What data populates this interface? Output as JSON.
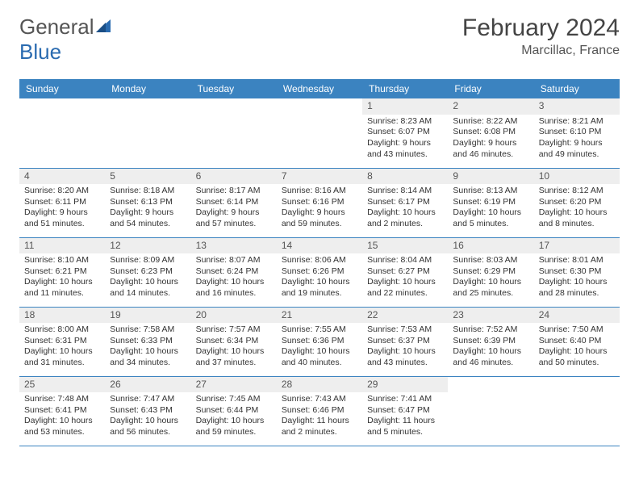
{
  "brand": {
    "name_a": "General",
    "name_b": "Blue"
  },
  "header": {
    "title": "February 2024",
    "location": "Marcillac, France"
  },
  "colors": {
    "header_bg": "#3b83c0",
    "header_fg": "#ffffff",
    "rule": "#3b83c0",
    "daynum_bg": "#eeeeee"
  },
  "weekdays": [
    "Sunday",
    "Monday",
    "Tuesday",
    "Wednesday",
    "Thursday",
    "Friday",
    "Saturday"
  ],
  "weeks": [
    [
      null,
      null,
      null,
      null,
      {
        "n": "1",
        "sr": "Sunrise: 8:23 AM",
        "ss": "Sunset: 6:07 PM",
        "d1": "Daylight: 9 hours",
        "d2": "and 43 minutes."
      },
      {
        "n": "2",
        "sr": "Sunrise: 8:22 AM",
        "ss": "Sunset: 6:08 PM",
        "d1": "Daylight: 9 hours",
        "d2": "and 46 minutes."
      },
      {
        "n": "3",
        "sr": "Sunrise: 8:21 AM",
        "ss": "Sunset: 6:10 PM",
        "d1": "Daylight: 9 hours",
        "d2": "and 49 minutes."
      }
    ],
    [
      {
        "n": "4",
        "sr": "Sunrise: 8:20 AM",
        "ss": "Sunset: 6:11 PM",
        "d1": "Daylight: 9 hours",
        "d2": "and 51 minutes."
      },
      {
        "n": "5",
        "sr": "Sunrise: 8:18 AM",
        "ss": "Sunset: 6:13 PM",
        "d1": "Daylight: 9 hours",
        "d2": "and 54 minutes."
      },
      {
        "n": "6",
        "sr": "Sunrise: 8:17 AM",
        "ss": "Sunset: 6:14 PM",
        "d1": "Daylight: 9 hours",
        "d2": "and 57 minutes."
      },
      {
        "n": "7",
        "sr": "Sunrise: 8:16 AM",
        "ss": "Sunset: 6:16 PM",
        "d1": "Daylight: 9 hours",
        "d2": "and 59 minutes."
      },
      {
        "n": "8",
        "sr": "Sunrise: 8:14 AM",
        "ss": "Sunset: 6:17 PM",
        "d1": "Daylight: 10 hours",
        "d2": "and 2 minutes."
      },
      {
        "n": "9",
        "sr": "Sunrise: 8:13 AM",
        "ss": "Sunset: 6:19 PM",
        "d1": "Daylight: 10 hours",
        "d2": "and 5 minutes."
      },
      {
        "n": "10",
        "sr": "Sunrise: 8:12 AM",
        "ss": "Sunset: 6:20 PM",
        "d1": "Daylight: 10 hours",
        "d2": "and 8 minutes."
      }
    ],
    [
      {
        "n": "11",
        "sr": "Sunrise: 8:10 AM",
        "ss": "Sunset: 6:21 PM",
        "d1": "Daylight: 10 hours",
        "d2": "and 11 minutes."
      },
      {
        "n": "12",
        "sr": "Sunrise: 8:09 AM",
        "ss": "Sunset: 6:23 PM",
        "d1": "Daylight: 10 hours",
        "d2": "and 14 minutes."
      },
      {
        "n": "13",
        "sr": "Sunrise: 8:07 AM",
        "ss": "Sunset: 6:24 PM",
        "d1": "Daylight: 10 hours",
        "d2": "and 16 minutes."
      },
      {
        "n": "14",
        "sr": "Sunrise: 8:06 AM",
        "ss": "Sunset: 6:26 PM",
        "d1": "Daylight: 10 hours",
        "d2": "and 19 minutes."
      },
      {
        "n": "15",
        "sr": "Sunrise: 8:04 AM",
        "ss": "Sunset: 6:27 PM",
        "d1": "Daylight: 10 hours",
        "d2": "and 22 minutes."
      },
      {
        "n": "16",
        "sr": "Sunrise: 8:03 AM",
        "ss": "Sunset: 6:29 PM",
        "d1": "Daylight: 10 hours",
        "d2": "and 25 minutes."
      },
      {
        "n": "17",
        "sr": "Sunrise: 8:01 AM",
        "ss": "Sunset: 6:30 PM",
        "d1": "Daylight: 10 hours",
        "d2": "and 28 minutes."
      }
    ],
    [
      {
        "n": "18",
        "sr": "Sunrise: 8:00 AM",
        "ss": "Sunset: 6:31 PM",
        "d1": "Daylight: 10 hours",
        "d2": "and 31 minutes."
      },
      {
        "n": "19",
        "sr": "Sunrise: 7:58 AM",
        "ss": "Sunset: 6:33 PM",
        "d1": "Daylight: 10 hours",
        "d2": "and 34 minutes."
      },
      {
        "n": "20",
        "sr": "Sunrise: 7:57 AM",
        "ss": "Sunset: 6:34 PM",
        "d1": "Daylight: 10 hours",
        "d2": "and 37 minutes."
      },
      {
        "n": "21",
        "sr": "Sunrise: 7:55 AM",
        "ss": "Sunset: 6:36 PM",
        "d1": "Daylight: 10 hours",
        "d2": "and 40 minutes."
      },
      {
        "n": "22",
        "sr": "Sunrise: 7:53 AM",
        "ss": "Sunset: 6:37 PM",
        "d1": "Daylight: 10 hours",
        "d2": "and 43 minutes."
      },
      {
        "n": "23",
        "sr": "Sunrise: 7:52 AM",
        "ss": "Sunset: 6:39 PM",
        "d1": "Daylight: 10 hours",
        "d2": "and 46 minutes."
      },
      {
        "n": "24",
        "sr": "Sunrise: 7:50 AM",
        "ss": "Sunset: 6:40 PM",
        "d1": "Daylight: 10 hours",
        "d2": "and 50 minutes."
      }
    ],
    [
      {
        "n": "25",
        "sr": "Sunrise: 7:48 AM",
        "ss": "Sunset: 6:41 PM",
        "d1": "Daylight: 10 hours",
        "d2": "and 53 minutes."
      },
      {
        "n": "26",
        "sr": "Sunrise: 7:47 AM",
        "ss": "Sunset: 6:43 PM",
        "d1": "Daylight: 10 hours",
        "d2": "and 56 minutes."
      },
      {
        "n": "27",
        "sr": "Sunrise: 7:45 AM",
        "ss": "Sunset: 6:44 PM",
        "d1": "Daylight: 10 hours",
        "d2": "and 59 minutes."
      },
      {
        "n": "28",
        "sr": "Sunrise: 7:43 AM",
        "ss": "Sunset: 6:46 PM",
        "d1": "Daylight: 11 hours",
        "d2": "and 2 minutes."
      },
      {
        "n": "29",
        "sr": "Sunrise: 7:41 AM",
        "ss": "Sunset: 6:47 PM",
        "d1": "Daylight: 11 hours",
        "d2": "and 5 minutes."
      },
      null,
      null
    ]
  ]
}
